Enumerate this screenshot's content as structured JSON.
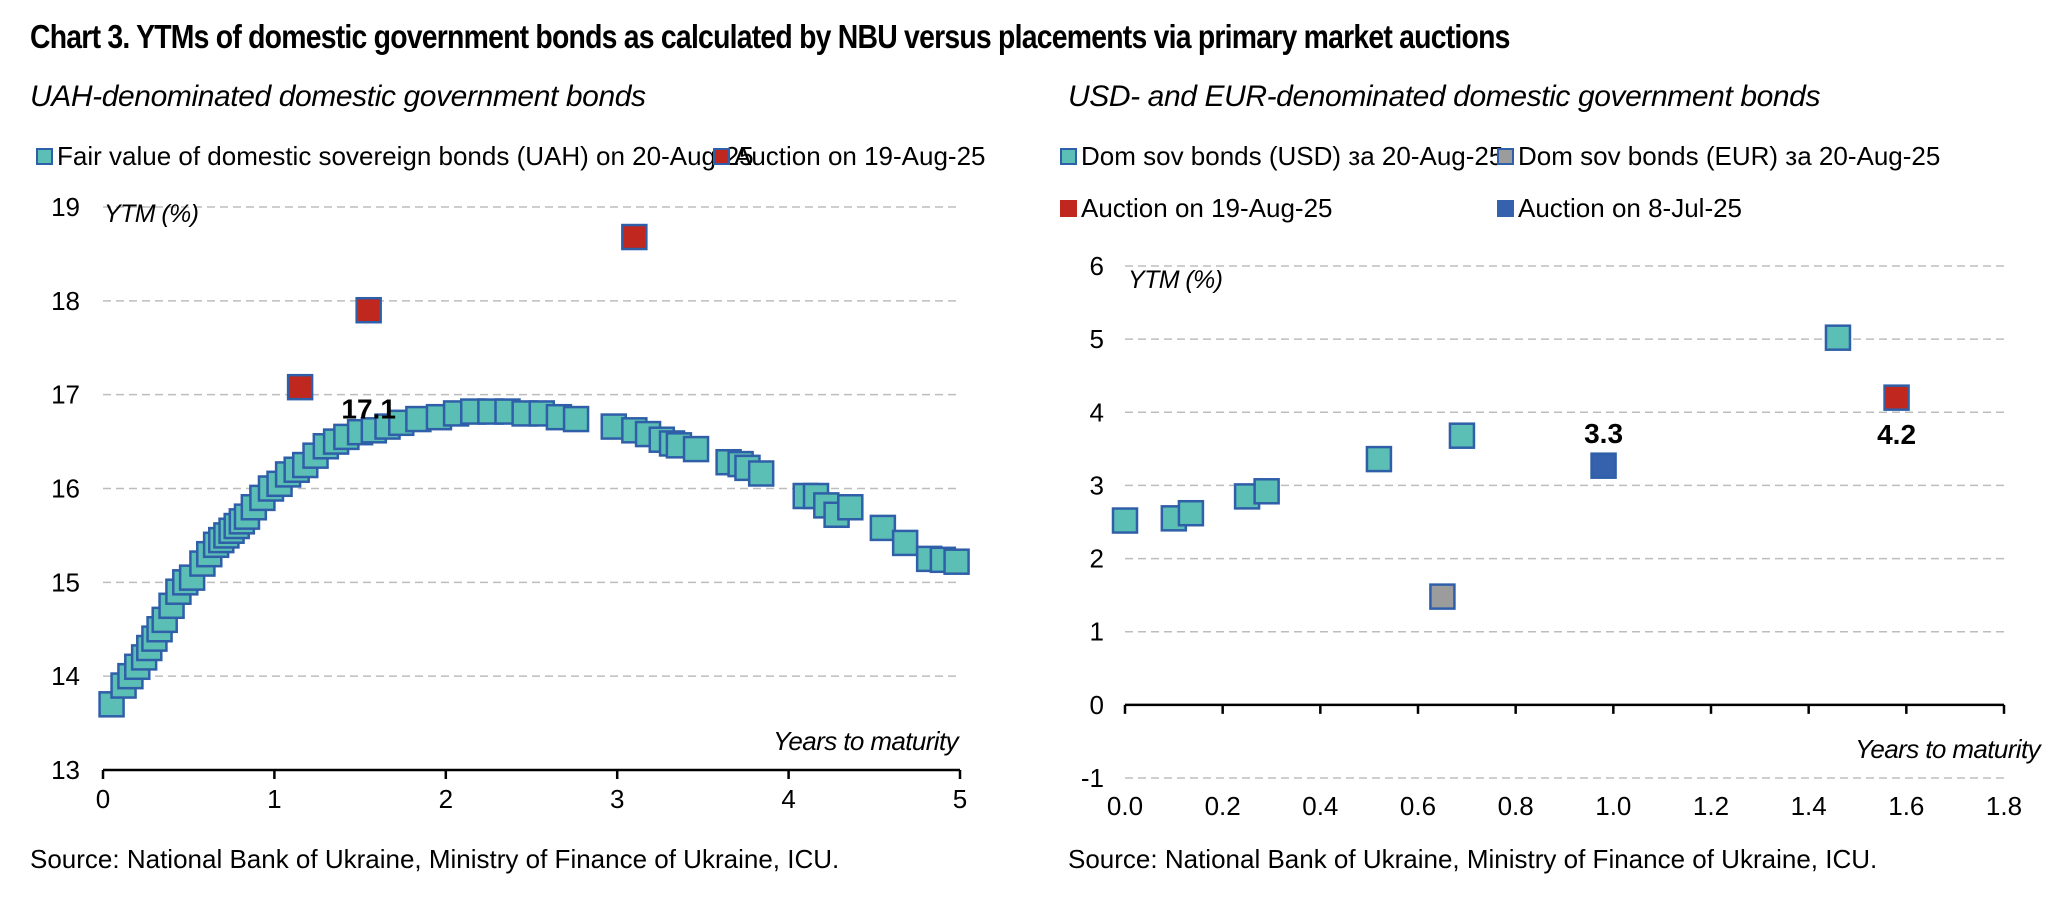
{
  "title": "Chart 3. YTMs of domestic government bonds as calculated by NBU versus placements via primary market auctions",
  "colors": {
    "teal": "#5bbfb5",
    "teal_border": "#2f5fa8",
    "red": "#c0271e",
    "blue": "#3561ad",
    "gray": "#9c9c9c",
    "grid": "#bdbdbd"
  },
  "chart_data": [
    {
      "type": "scatter",
      "subtitle": "UAH-denominated domestic government bonds",
      "ylabel": "YTM (%)",
      "xlabel": "Years to maturity",
      "xlim": [
        0,
        5
      ],
      "ylim": [
        13,
        19
      ],
      "x_ticks": [
        "0",
        "1",
        "2",
        "3",
        "4",
        "5"
      ],
      "y_ticks": [
        "13",
        "14",
        "15",
        "16",
        "17",
        "18",
        "19"
      ],
      "grid": "horizontal dashed",
      "legend_position": "top",
      "series": [
        {
          "name": "Fair value of domestic sovereign bonds (UAH) on 20-Aug-25",
          "color": "teal",
          "points": [
            [
              0.05,
              13.7
            ],
            [
              0.12,
              13.9
            ],
            [
              0.16,
              14.0
            ],
            [
              0.2,
              14.1
            ],
            [
              0.24,
              14.2
            ],
            [
              0.27,
              14.3
            ],
            [
              0.3,
              14.4
            ],
            [
              0.33,
              14.5
            ],
            [
              0.36,
              14.6
            ],
            [
              0.4,
              14.75
            ],
            [
              0.44,
              14.9
            ],
            [
              0.48,
              15.0
            ],
            [
              0.52,
              15.05
            ],
            [
              0.58,
              15.2
            ],
            [
              0.62,
              15.3
            ],
            [
              0.66,
              15.4
            ],
            [
              0.69,
              15.45
            ],
            [
              0.72,
              15.5
            ],
            [
              0.75,
              15.55
            ],
            [
              0.78,
              15.6
            ],
            [
              0.81,
              15.65
            ],
            [
              0.84,
              15.7
            ],
            [
              0.88,
              15.8
            ],
            [
              0.93,
              15.9
            ],
            [
              0.98,
              16.0
            ],
            [
              1.03,
              16.05
            ],
            [
              1.08,
              16.15
            ],
            [
              1.13,
              16.2
            ],
            [
              1.18,
              16.25
            ],
            [
              1.24,
              16.35
            ],
            [
              1.3,
              16.45
            ],
            [
              1.36,
              16.5
            ],
            [
              1.42,
              16.55
            ],
            [
              1.5,
              16.6
            ],
            [
              1.58,
              16.62
            ],
            [
              1.66,
              16.66
            ],
            [
              1.74,
              16.7
            ],
            [
              1.84,
              16.74
            ],
            [
              1.96,
              16.76
            ],
            [
              2.06,
              16.8
            ],
            [
              2.16,
              16.82
            ],
            [
              2.26,
              16.82
            ],
            [
              2.36,
              16.82
            ],
            [
              2.46,
              16.8
            ],
            [
              2.56,
              16.8
            ],
            [
              2.66,
              16.76
            ],
            [
              2.76,
              16.74
            ],
            [
              2.98,
              16.66
            ],
            [
              3.1,
              16.62
            ],
            [
              3.18,
              16.58
            ],
            [
              3.26,
              16.52
            ],
            [
              3.32,
              16.48
            ],
            [
              3.36,
              16.46
            ],
            [
              3.46,
              16.42
            ],
            [
              3.65,
              16.28
            ],
            [
              3.72,
              16.26
            ],
            [
              3.76,
              16.22
            ],
            [
              3.84,
              16.16
            ],
            [
              4.1,
              15.92
            ],
            [
              4.16,
              15.92
            ],
            [
              4.22,
              15.82
            ],
            [
              4.28,
              15.72
            ],
            [
              4.36,
              15.8
            ],
            [
              4.55,
              15.58
            ],
            [
              4.68,
              15.42
            ],
            [
              4.82,
              15.25
            ],
            [
              4.9,
              15.24
            ],
            [
              4.98,
              15.22
            ]
          ]
        },
        {
          "name": "Auction on 19-Aug-25",
          "color": "red",
          "points": [
            [
              1.15,
              17.08
            ],
            [
              1.55,
              17.9
            ],
            [
              3.1,
              18.68
            ]
          ]
        }
      ],
      "annotations": [
        {
          "text": "17.1",
          "x": 1.55,
          "y": 16.85
        }
      ],
      "source": "Source: National Bank of Ukraine, Ministry of Finance of Ukraine, ICU."
    },
    {
      "type": "scatter",
      "subtitle": "USD- and EUR-denominated domestic government bonds",
      "ylabel": "YTM (%)",
      "xlabel": "Years to maturity",
      "xlim": [
        0,
        1.8
      ],
      "ylim": [
        -1,
        6
      ],
      "x_ticks": [
        "0.0",
        "0.2",
        "0.4",
        "0.6",
        "0.8",
        "1.0",
        "1.2",
        "1.4",
        "1.6",
        "1.8"
      ],
      "y_ticks": [
        "-1",
        "0",
        "1",
        "2",
        "3",
        "4",
        "5",
        "6"
      ],
      "grid": "horizontal dashed",
      "legend_position": "top",
      "series": [
        {
          "name": "Dom sov bonds (USD) за 20-Aug-25",
          "color": "teal",
          "points": [
            [
              0.0,
              2.52
            ],
            [
              0.1,
              2.55
            ],
            [
              0.135,
              2.62
            ],
            [
              0.25,
              2.85
            ],
            [
              0.29,
              2.92
            ],
            [
              0.52,
              3.36
            ],
            [
              0.69,
              3.68
            ],
            [
              1.46,
              5.02
            ]
          ]
        },
        {
          "name": "Dom sov bonds (EUR) за 20-Aug-25",
          "color": "gray",
          "points": [
            [
              0.65,
              1.48
            ]
          ]
        },
        {
          "name": "Auction on 19-Aug-25",
          "color": "red",
          "points": [
            [
              1.58,
              4.2
            ]
          ]
        },
        {
          "name": "Auction on 8-Jul-25",
          "color": "blue",
          "points": [
            [
              0.98,
              3.27
            ]
          ]
        }
      ],
      "annotations": [
        {
          "text": "3.3",
          "x": 0.98,
          "y": 3.72
        },
        {
          "text": "4.2",
          "x": 1.58,
          "y": 3.7
        }
      ],
      "source": "Source: National Bank of Ukraine, Ministry of Finance of Ukraine, ICU."
    }
  ]
}
